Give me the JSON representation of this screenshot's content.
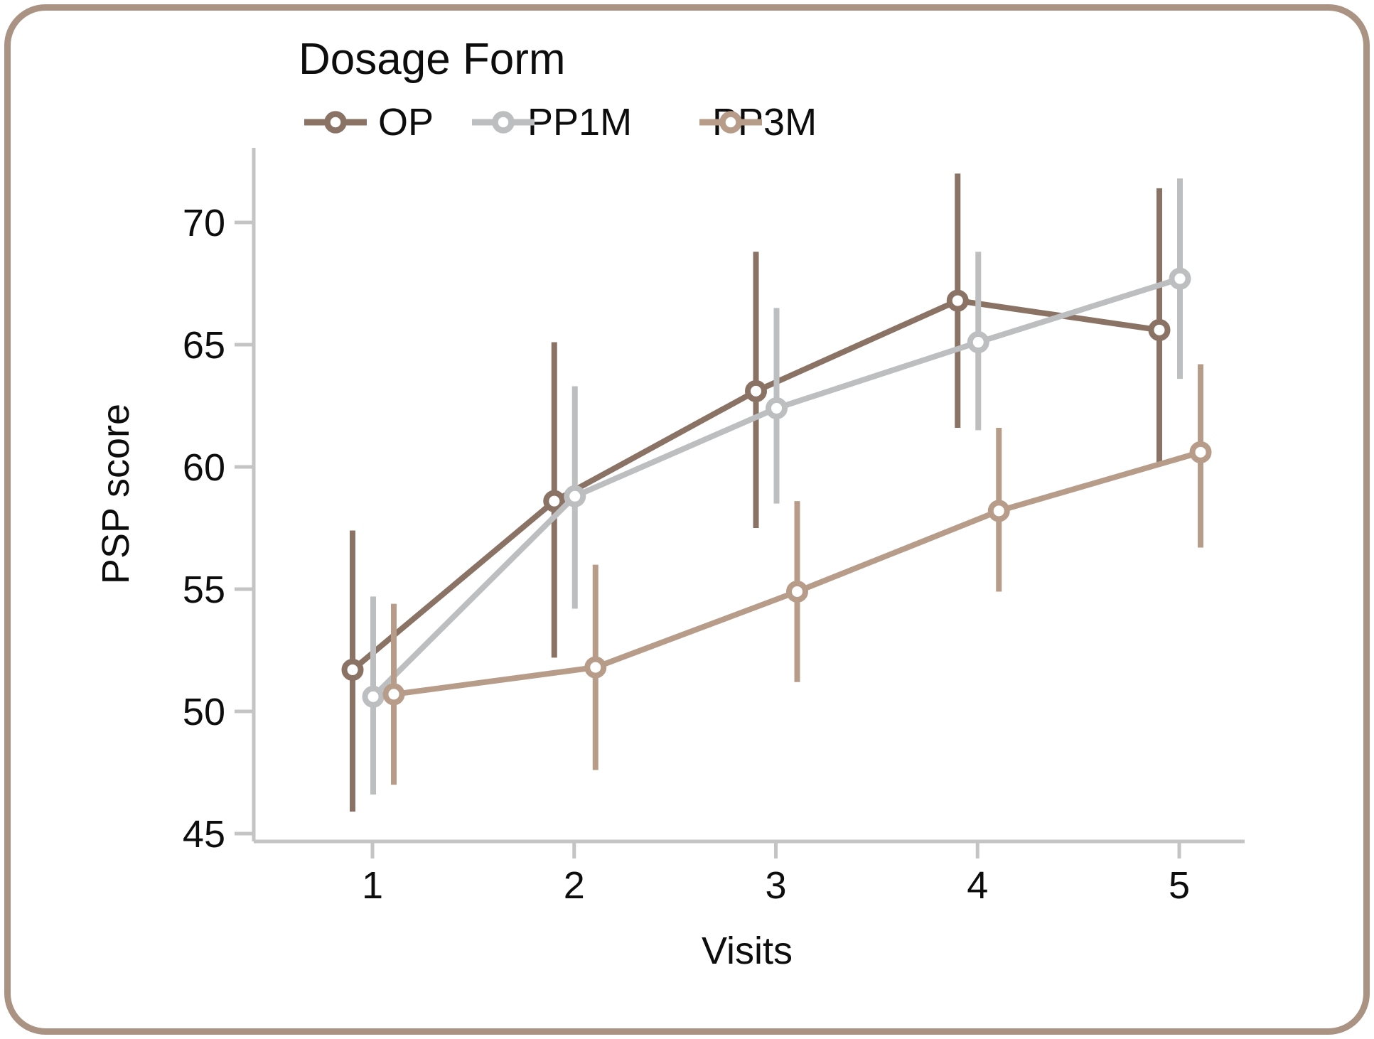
{
  "figure": {
    "legend": {
      "title": "Dosage Form"
    },
    "x_axis": {
      "label": "Visits"
    },
    "y_axis": {
      "label": "PSP score"
    }
  },
  "colors": {
    "axis": "#c4c4c4",
    "text": "#0d0d0d",
    "frame": "#aa9383",
    "background": "#ffffff",
    "marker_fill": "#ffffff"
  },
  "chart_data": {
    "type": "line",
    "title": "",
    "legend_title": "Dosage Form",
    "xlabel": "Visits",
    "ylabel": "PSP score",
    "x": [
      1,
      2,
      3,
      4,
      5
    ],
    "xticks": [
      1,
      2,
      3,
      4,
      5
    ],
    "yticks": [
      45,
      50,
      55,
      60,
      65,
      70
    ],
    "ylim": [
      44.7,
      73.2
    ],
    "xlim": [
      0.4,
      5.35
    ],
    "grid": false,
    "error_bars": true,
    "legend_position": "top-left",
    "series": [
      {
        "name": "OP",
        "color": "#8a7265",
        "values": [
          51.7,
          58.6,
          63.1,
          66.8,
          65.6
        ],
        "lower": [
          45.9,
          52.2,
          57.5,
          61.6,
          60.1
        ],
        "upper": [
          57.4,
          65.1,
          68.8,
          72.0,
          71.4
        ]
      },
      {
        "name": "PP1M",
        "color": "#bcbec0",
        "values": [
          50.6,
          58.8,
          62.4,
          65.1,
          67.7
        ],
        "lower": [
          46.6,
          54.2,
          58.5,
          61.5,
          63.6
        ],
        "upper": [
          54.7,
          63.3,
          66.5,
          68.8,
          71.8
        ]
      },
      {
        "name": "PP3M",
        "color": "#b89c8a",
        "values": [
          50.7,
          51.8,
          54.9,
          58.2,
          60.6
        ],
        "lower": [
          47.0,
          47.6,
          51.2,
          54.9,
          56.7
        ],
        "upper": [
          54.4,
          56.0,
          58.6,
          61.6,
          64.2
        ]
      }
    ]
  }
}
